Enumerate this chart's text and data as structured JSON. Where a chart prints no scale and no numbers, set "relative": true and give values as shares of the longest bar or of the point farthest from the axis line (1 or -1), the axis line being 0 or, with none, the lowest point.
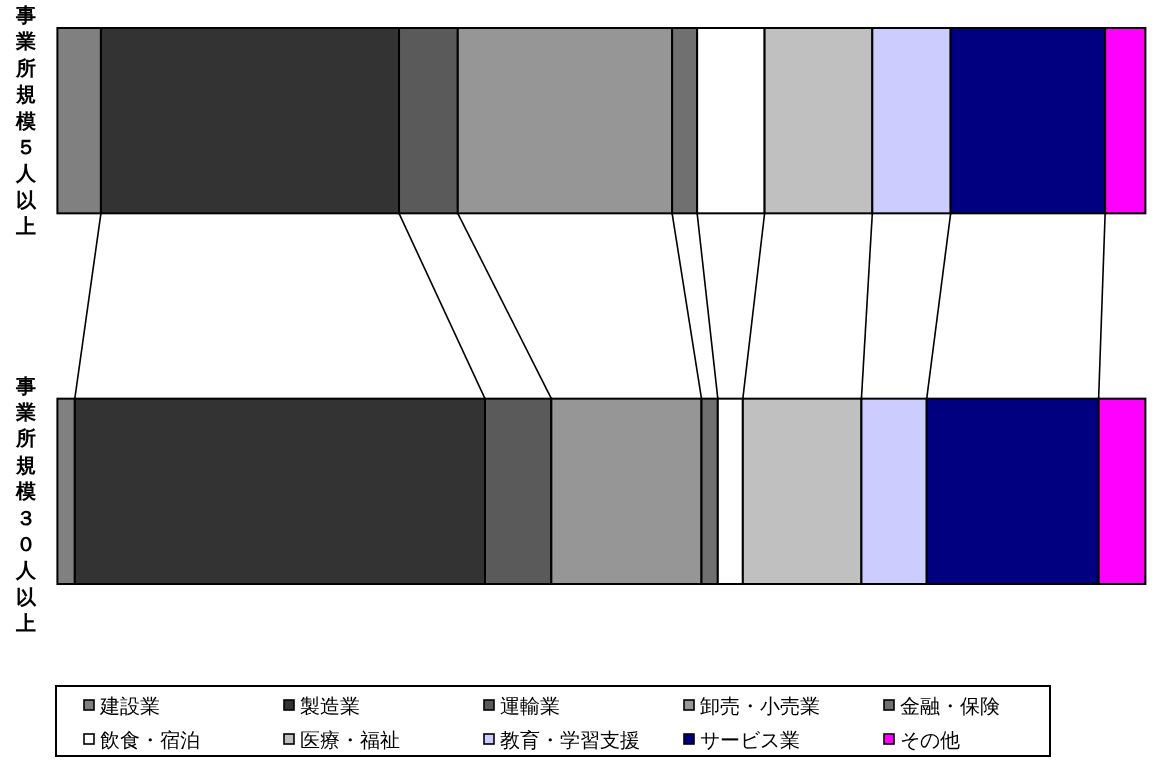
{
  "chart_data": {
    "type": "bar",
    "orientation": "horizontal",
    "stacked": true,
    "relative": true,
    "legend": "bottom",
    "categories": [
      "事業所規模５人以上",
      "事業所規模３０人以上"
    ],
    "series": [
      {
        "name": "建設業",
        "color": "#808080",
        "values": [
          0.04,
          0.016
        ]
      },
      {
        "name": "製造業",
        "color": "#333333",
        "values": [
          0.274,
          0.377
        ]
      },
      {
        "name": "運輸業",
        "color": "#5a5a5a",
        "values": [
          0.054,
          0.061
        ]
      },
      {
        "name": "卸売・小売業",
        "color": "#969696",
        "values": [
          0.197,
          0.138
        ]
      },
      {
        "name": "金融・保険",
        "color": "#707070",
        "values": [
          0.023,
          0.015
        ]
      },
      {
        "name": "飲食・宿泊",
        "color": "#ffffff",
        "values": [
          0.062,
          0.023
        ]
      },
      {
        "name": "医療・福祉",
        "color": "#c0c0c0",
        "values": [
          0.099,
          0.109
        ]
      },
      {
        "name": "教育・学習支援",
        "color": "#ccccff",
        "values": [
          0.072,
          0.06
        ]
      },
      {
        "name": "サービス業",
        "color": "#000080",
        "values": [
          0.142,
          0.158
        ]
      },
      {
        "name": "その他",
        "color": "#ff00ff",
        "values": [
          0.037,
          0.043
        ]
      }
    ]
  }
}
